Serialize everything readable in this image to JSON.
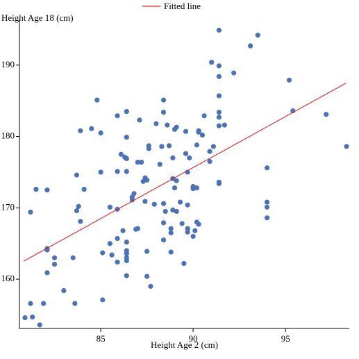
{
  "chart_data": {
    "type": "scatter",
    "x_label": "Height Age 2 (cm)",
    "y_label": "Height Age 18 (cm)",
    "xlim": [
      80.6,
      98.45
    ],
    "ylim": [
      153.1,
      196.4
    ],
    "xticks": [
      85,
      90,
      95
    ],
    "yticks": [
      160,
      170,
      180,
      190
    ],
    "legend": "top",
    "points": {
      "color": "#4a72b8",
      "x": [
        80.9,
        81.3,
        81.7,
        81.2,
        81.9,
        81.2,
        81.5,
        82.1,
        82.1,
        82.1,
        82.1,
        82.5,
        82.5,
        83.0,
        83.5,
        83.6,
        83.7,
        83.7,
        83.8,
        83.9,
        83.9,
        84.1,
        84.5,
        84.8,
        85.0,
        85.0,
        85.1,
        85.1,
        85.5,
        85.5,
        85.6,
        85.9,
        85.9,
        85.9,
        85.9,
        85.9,
        86.1,
        86.2,
        86.3,
        86.4,
        86.4,
        86.4,
        86.4,
        86.4,
        86.4,
        86.4,
        86.4,
        86.4,
        86.4,
        86.7,
        86.7,
        86.8,
        86.9,
        87.0,
        87.0,
        87.1,
        87.2,
        87.3,
        87.4,
        87.4,
        87.5,
        87.5,
        87.5,
        87.6,
        87.6,
        87.7,
        87.9,
        88.0,
        88.2,
        88.3,
        88.4,
        88.4,
        88.4,
        88.4,
        88.4,
        88.5,
        88.6,
        88.7,
        88.8,
        88.8,
        88.8,
        88.9,
        88.9,
        88.9,
        89.0,
        89.0,
        89.1,
        89.1,
        89.1,
        89.3,
        89.4,
        89.5,
        89.6,
        89.6,
        89.7,
        89.7,
        89.7,
        89.7,
        89.8,
        90.0,
        90.0,
        90.0,
        90.0,
        90.1,
        90.2,
        90.3,
        90.2,
        90.3,
        90.2,
        90.3,
        90.5,
        90.6,
        90.9,
        90.9,
        91.0,
        91.1,
        91.4,
        91.4,
        91.4,
        91.4,
        91.4,
        91.4,
        91.4,
        91.4,
        91.4,
        91.7,
        92.2,
        93.1,
        93.5,
        94.0,
        94.0,
        94.0,
        94.0,
        95.2,
        95.4,
        97.2,
        98.3
      ],
      "y": [
        154.6,
        154.7,
        153.6,
        156.6,
        156.6,
        169.4,
        172.6,
        172.5,
        164.3,
        164.1,
        160.9,
        163.0,
        162.1,
        158.4,
        163.0,
        156.6,
        174.6,
        169.6,
        170.2,
        168.1,
        180.8,
        172.6,
        181.1,
        185.1,
        180.5,
        175.0,
        163.7,
        157.1,
        165.0,
        170.1,
        163.4,
        162.4,
        165.7,
        182.9,
        169.8,
        175.1,
        177.5,
        166.8,
        177.1,
        176.9,
        183.5,
        179.9,
        175.1,
        165.2,
        164.0,
        163.6,
        163.0,
        162.6,
        160.5,
        171.5,
        171.1,
        172.0,
        167.0,
        176.4,
        167.1,
        182.3,
        176.4,
        173.7,
        170.9,
        174.2,
        173.9,
        163.9,
        160.4,
        178.7,
        178.3,
        159.0,
        170.5,
        181.8,
        176.1,
        178.6,
        185.1,
        183.4,
        167.9,
        165.5,
        170.6,
        169.5,
        181.6,
        178.7,
        167.1,
        163.8,
        166.5,
        177.0,
        174.1,
        169.7,
        172.8,
        181.0,
        181.3,
        173.8,
        169.5,
        170.8,
        167.8,
        162.2,
        177.6,
        180.7,
        166.6,
        167.1,
        170.4,
        175.0,
        177.0,
        172.7,
        166.0,
        173.0,
        172.8,
        166.8,
        168.0,
        180.8,
        178.8,
        167.7,
        172.8,
        180.6,
        180.2,
        182.9,
        177.9,
        176.5,
        190.4,
        178.6,
        188.4,
        189.9,
        181.5,
        183.4,
        182.7,
        185.7,
        194.9,
        173.6,
        173.4,
        181.6,
        188.9,
        192.7,
        194.2,
        175.6,
        170.8,
        170.1,
        168.6,
        187.9,
        183.6,
        183.1,
        178.6
      ]
    },
    "fit_line": {
      "name": "Fitted line",
      "color": "#d62728",
      "x": [
        80.83,
        98.27
      ],
      "y": [
        162.53,
        187.47
      ]
    }
  }
}
